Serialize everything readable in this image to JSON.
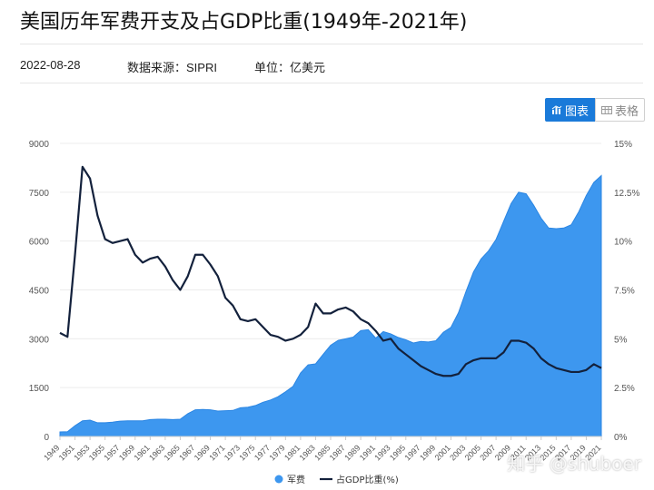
{
  "header": {
    "title": "美国历年军费开支及占GDP比重(1949年-2021年)",
    "date": "2022-08-28",
    "source": "数据来源：SIPRI",
    "unit": "单位：亿美元"
  },
  "toggle": {
    "chart_label": "图表",
    "table_label": "表格"
  },
  "watermark": "知乎 @shuboer",
  "colors": {
    "area": "#3d97ef",
    "area_edge": "#2b86e3",
    "line": "#13213c",
    "accent": "#1a7ad9"
  },
  "chart_data": {
    "type": "area",
    "x": [
      1949,
      1950,
      1951,
      1952,
      1953,
      1954,
      1955,
      1956,
      1957,
      1958,
      1959,
      1960,
      1961,
      1962,
      1963,
      1964,
      1965,
      1966,
      1967,
      1968,
      1969,
      1970,
      1971,
      1972,
      1973,
      1974,
      1975,
      1976,
      1977,
      1978,
      1979,
      1980,
      1981,
      1982,
      1983,
      1984,
      1985,
      1986,
      1987,
      1988,
      1989,
      1990,
      1991,
      1992,
      1993,
      1994,
      1995,
      1996,
      1997,
      1998,
      1999,
      2000,
      2001,
      2002,
      2003,
      2004,
      2005,
      2006,
      2007,
      2008,
      2009,
      2010,
      2011,
      2012,
      2013,
      2014,
      2015,
      2016,
      2017,
      2018,
      2019,
      2020,
      2021
    ],
    "x_tick_labels": [
      "1949",
      "1951",
      "1953",
      "1955",
      "1957",
      "1959",
      "1961",
      "1963",
      "1965",
      "1967",
      "1969",
      "1971",
      "1973",
      "1975",
      "1977",
      "1979",
      "1981",
      "1983",
      "1985",
      "1987",
      "1989",
      "1991",
      "1993",
      "1995",
      "1997",
      "1999",
      "2001",
      "2003",
      "2005",
      "2007",
      "2009",
      "2011",
      "2013",
      "2015",
      "2017",
      "2019",
      "2021"
    ],
    "series": [
      {
        "name": "军费",
        "axis": "left",
        "values": [
          141,
          145,
          330,
          480,
          500,
          420,
          420,
          440,
          470,
          480,
          480,
          480,
          520,
          530,
          530,
          520,
          530,
          700,
          820,
          830,
          820,
          780,
          790,
          800,
          880,
          900,
          950,
          1050,
          1120,
          1220,
          1370,
          1540,
          1950,
          2200,
          2230,
          2520,
          2800,
          2950,
          3000,
          3050,
          3250,
          3280,
          3020,
          3220,
          3150,
          3040,
          2970,
          2870,
          2920,
          2900,
          2940,
          3200,
          3350,
          3800,
          4450,
          5050,
          5450,
          5700,
          6050,
          6600,
          7150,
          7500,
          7450,
          7100,
          6700,
          6400,
          6380,
          6400,
          6500,
          6900,
          7400,
          7800,
          8010
        ]
      },
      {
        "name": "占GDP比重(%)",
        "axis": "right",
        "values": [
          5.3,
          5.1,
          9.3,
          13.8,
          13.2,
          11.3,
          10.1,
          9.9,
          10.0,
          10.1,
          9.3,
          8.9,
          9.1,
          9.2,
          8.7,
          8.0,
          7.5,
          8.2,
          9.3,
          9.3,
          8.8,
          8.2,
          7.1,
          6.7,
          6.0,
          5.9,
          6.0,
          5.6,
          5.2,
          5.1,
          4.9,
          5.0,
          5.2,
          5.6,
          6.8,
          6.3,
          6.3,
          6.5,
          6.6,
          6.4,
          6.0,
          5.8,
          5.4,
          4.9,
          5.0,
          4.5,
          4.2,
          3.9,
          3.6,
          3.4,
          3.2,
          3.1,
          3.1,
          3.2,
          3.7,
          3.9,
          4.0,
          4.0,
          4.0,
          4.3,
          4.9,
          4.9,
          4.8,
          4.5,
          4.0,
          3.7,
          3.5,
          3.4,
          3.3,
          3.3,
          3.4,
          3.7,
          3.5
        ]
      }
    ],
    "y_left": {
      "ticks": [
        0,
        1500,
        3000,
        4500,
        6000,
        7500,
        9000
      ],
      "ylim": [
        0,
        9000
      ]
    },
    "y_right": {
      "ticks": [
        "0%",
        "2.5%",
        "5%",
        "7.5%",
        "10%",
        "12.5%",
        "15%"
      ],
      "ylim": [
        0,
        15
      ]
    },
    "legend": {
      "placement": "bottom-center",
      "items": [
        "军费",
        "占GDP比重(%)"
      ]
    },
    "grid": "horizontal"
  }
}
